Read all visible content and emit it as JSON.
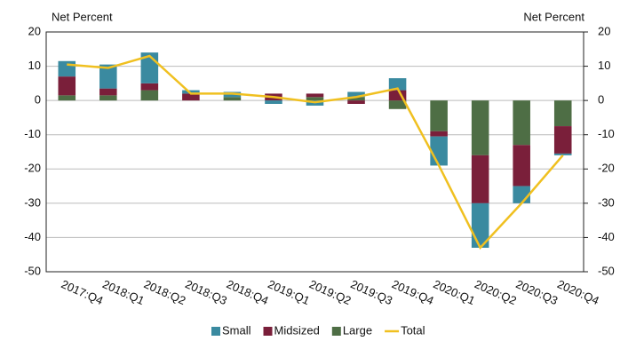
{
  "chart_data": {
    "type": "bar",
    "y_label": "Net Percent",
    "y2_label": "Net Percent",
    "categories": [
      "2017:Q4",
      "2018:Q1",
      "2018:Q2",
      "2018:Q3",
      "2018:Q4",
      "2019:Q1",
      "2019:Q2",
      "2019:Q3",
      "2019:Q4",
      "2020:Q1",
      "2020:Q2",
      "2020:Q3",
      "2020:Q4"
    ],
    "series": [
      {
        "name": "Small",
        "type": "bar",
        "color": "#3a8aa0",
        "values": [
          4.5,
          7,
          9,
          1,
          1.5,
          -1,
          -1.5,
          1.5,
          3.5,
          -8.5,
          -13,
          -5,
          -0.5
        ]
      },
      {
        "name": "Midsized",
        "type": "bar",
        "color": "#7a1f3a",
        "values": [
          5.5,
          2,
          2,
          2,
          0,
          2,
          1,
          -1,
          3,
          -1.5,
          -14,
          -12,
          -8
        ]
      },
      {
        "name": "Large",
        "type": "bar",
        "color": "#4e6e45",
        "values": [
          1.5,
          1.5,
          3,
          0,
          1,
          0,
          1,
          1,
          -2.5,
          -9,
          -16,
          -13,
          -7.5
        ]
      },
      {
        "name": "Total",
        "type": "line",
        "color": "#f0c020",
        "values": [
          10.5,
          9.5,
          13,
          2,
          2,
          1,
          -0.5,
          1,
          3.5,
          -19,
          -43,
          -30,
          -16
        ]
      }
    ],
    "ylim": [
      -50,
      20
    ],
    "yticks": [
      -50,
      -40,
      -30,
      -20,
      -10,
      0,
      10,
      20
    ],
    "y2lim": [
      -50,
      20
    ],
    "y2ticks": [
      -50,
      -40,
      -30,
      -20,
      -10,
      0,
      10,
      20
    ],
    "grid": true
  }
}
